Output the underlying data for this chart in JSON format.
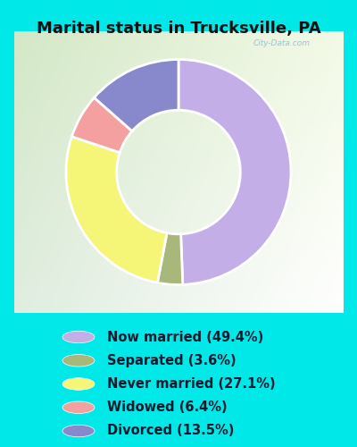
{
  "title": "Marital status in Trucksville, PA",
  "slices": [
    49.4,
    3.6,
    27.1,
    6.4,
    13.5
  ],
  "labels": [
    "Now married (49.4%)",
    "Separated (3.6%)",
    "Never married (27.1%)",
    "Widowed (6.4%)",
    "Divorced (13.5%)"
  ],
  "colors": [
    "#c4aee8",
    "#a8b87a",
    "#f5f577",
    "#f5a0a0",
    "#8888cc"
  ],
  "bg_cyan": "#00e8e8",
  "chart_bg": "#d8edd8",
  "title_fontsize": 13,
  "legend_fontsize": 10.5,
  "watermark": "City-Data.com",
  "start_angle": 90,
  "donut_width": 0.45
}
